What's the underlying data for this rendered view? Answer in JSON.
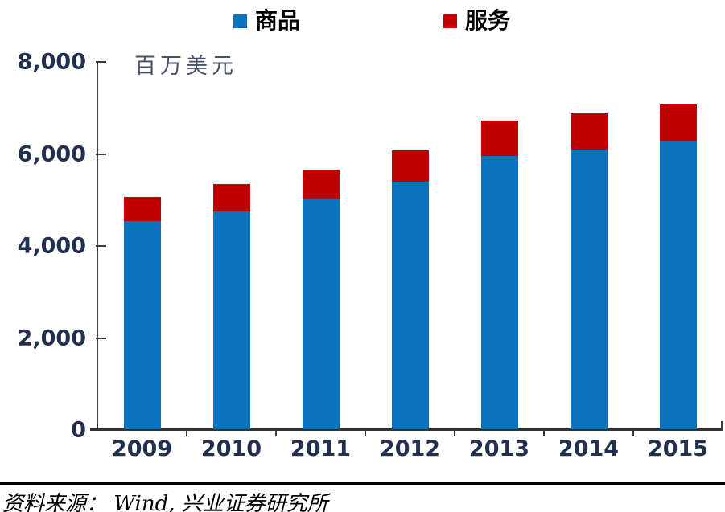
{
  "legend": {
    "items": [
      {
        "label": "商品",
        "color": "#0b72bd"
      },
      {
        "label": "服务",
        "color": "#c00000"
      }
    ]
  },
  "chart_data": {
    "type": "bar",
    "stacked": true,
    "title": "",
    "unit_label": "百万美元",
    "categories": [
      "2009",
      "2010",
      "2011",
      "2012",
      "2013",
      "2014",
      "2015"
    ],
    "series": [
      {
        "name": "商品",
        "color": "#0b72bd",
        "values": [
          4540,
          4740,
          5030,
          5400,
          5950,
          6100,
          6270
        ]
      },
      {
        "name": "服务",
        "color": "#c00000",
        "values": [
          520,
          590,
          630,
          680,
          770,
          780,
          810
        ]
      }
    ],
    "totals": [
      5060,
      5330,
      5660,
      6080,
      6720,
      6880,
      7080
    ],
    "ylim": [
      0,
      8000
    ],
    "ytick_labels": [
      "8,000",
      "6,000",
      "4,000",
      "2,000",
      "0"
    ],
    "xlabel": "",
    "ylabel": "百万美元",
    "legend_position": "top",
    "grid": false,
    "axis_color": "#3c3c3c",
    "tick_label_color": "#22304f"
  },
  "source": {
    "text": "资料来源： Wind, 兴业证券研究所"
  }
}
